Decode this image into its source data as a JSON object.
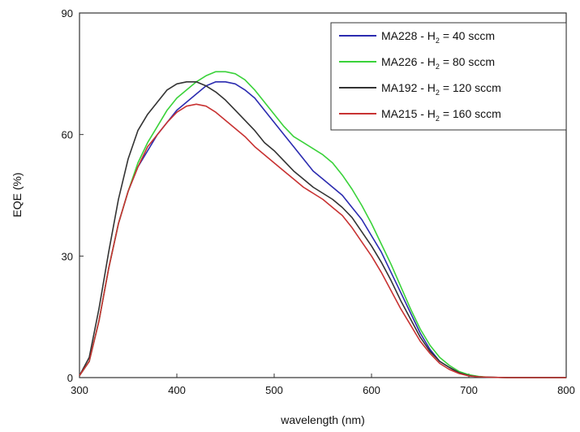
{
  "chart_data": {
    "type": "line",
    "title": "",
    "xlabel": "wavelength (nm)",
    "ylabel": "EQE (%)",
    "xlim": [
      300,
      800
    ],
    "ylim": [
      0,
      90
    ],
    "xticks": [
      300,
      400,
      500,
      600,
      700,
      800
    ],
    "yticks": [
      0,
      30,
      60,
      90
    ],
    "grid": false,
    "legend_position": "top-right",
    "series": [
      {
        "name": "MA228 - H2 = 40 sccm",
        "label_prefix": "MA228 - H",
        "label_sub": "2",
        "label_suffix": " = 40 sccm",
        "color": "#2b2bb0",
        "x": [
          300,
          310,
          320,
          330,
          340,
          350,
          360,
          370,
          380,
          390,
          400,
          410,
          420,
          430,
          440,
          450,
          460,
          470,
          480,
          490,
          500,
          510,
          520,
          530,
          540,
          550,
          560,
          570,
          580,
          590,
          600,
          610,
          620,
          630,
          640,
          650,
          660,
          670,
          680,
          690,
          700,
          710,
          720,
          740,
          760,
          780,
          800
        ],
        "y": [
          0.5,
          4,
          14,
          27,
          38,
          46,
          52,
          56,
          60,
          63,
          66,
          68,
          70,
          72,
          73,
          73,
          72.5,
          71,
          69,
          66,
          63,
          60,
          57,
          54,
          51,
          49,
          47,
          45,
          42,
          39,
          35,
          31,
          26,
          21,
          16,
          11,
          7,
          4,
          2.5,
          1.2,
          0.5,
          0.2,
          0.1,
          0,
          0,
          0,
          0
        ]
      },
      {
        "name": "MA226 - H2 = 80 sccm",
        "label_prefix": "MA226 - H",
        "label_sub": "2",
        "label_suffix": " = 80 sccm",
        "color": "#3ad23a",
        "x": [
          300,
          310,
          320,
          330,
          340,
          350,
          360,
          370,
          380,
          390,
          400,
          410,
          420,
          430,
          440,
          450,
          460,
          470,
          480,
          490,
          500,
          510,
          520,
          530,
          540,
          550,
          560,
          570,
          580,
          590,
          600,
          610,
          620,
          630,
          640,
          650,
          660,
          670,
          680,
          690,
          700,
          710,
          720,
          740,
          760,
          780,
          800
        ],
        "y": [
          0.5,
          4,
          14,
          27,
          38,
          46,
          53,
          58,
          62,
          66,
          69,
          71,
          73,
          74.5,
          75.5,
          75.5,
          75,
          73.5,
          71,
          68,
          65,
          62,
          59.5,
          58,
          56.5,
          55,
          53,
          50,
          46.5,
          42.5,
          38,
          33,
          28,
          22.5,
          17,
          12,
          8,
          5,
          3,
          1.5,
          0.7,
          0.3,
          0.1,
          0,
          0,
          0,
          0
        ]
      },
      {
        "name": "MA192 - H2 = 120 sccm",
        "label_prefix": "MA192 - H",
        "label_sub": "2",
        "label_suffix": " = 120 sccm",
        "color": "#333333",
        "x": [
          300,
          310,
          320,
          330,
          340,
          350,
          360,
          370,
          380,
          390,
          400,
          410,
          420,
          430,
          440,
          450,
          460,
          470,
          480,
          490,
          500,
          510,
          520,
          530,
          540,
          550,
          560,
          570,
          580,
          590,
          600,
          610,
          620,
          630,
          640,
          650,
          660,
          670,
          680,
          690,
          700,
          710,
          720,
          740,
          760,
          780,
          800
        ],
        "y": [
          0.5,
          5,
          17,
          31,
          44,
          54,
          61,
          65,
          68,
          71,
          72.5,
          73,
          73,
          72,
          70.5,
          68.5,
          66,
          63.5,
          61,
          58,
          56,
          53.5,
          51,
          49,
          47,
          45.5,
          44,
          42,
          39.5,
          36,
          32.5,
          28.5,
          24,
          19,
          14.5,
          10,
          6.5,
          4,
          2.5,
          1.2,
          0.5,
          0.2,
          0.1,
          0,
          0,
          0,
          0
        ]
      },
      {
        "name": "MA215 - H2 = 160 sccm",
        "label_prefix": "MA215 - H",
        "label_sub": "2",
        "label_suffix": " = 160 sccm",
        "color": "#c83232",
        "x": [
          300,
          310,
          320,
          330,
          340,
          350,
          360,
          370,
          380,
          390,
          400,
          410,
          420,
          430,
          440,
          450,
          460,
          470,
          480,
          490,
          500,
          510,
          520,
          530,
          540,
          550,
          560,
          570,
          580,
          590,
          600,
          610,
          620,
          630,
          640,
          650,
          660,
          670,
          680,
          690,
          700,
          710,
          720,
          740,
          760,
          780,
          800
        ],
        "y": [
          0.5,
          4,
          14,
          27,
          38,
          46,
          52,
          57,
          60,
          63,
          65.5,
          67,
          67.5,
          67,
          65.5,
          63.5,
          61.5,
          59.5,
          57,
          55,
          53,
          51,
          49,
          47,
          45.5,
          44,
          42,
          40,
          37,
          33.5,
          30,
          26,
          21.5,
          17,
          13,
          9,
          6,
          3.5,
          2,
          1,
          0.4,
          0.2,
          0.1,
          0,
          0,
          0,
          0
        ]
      }
    ]
  }
}
